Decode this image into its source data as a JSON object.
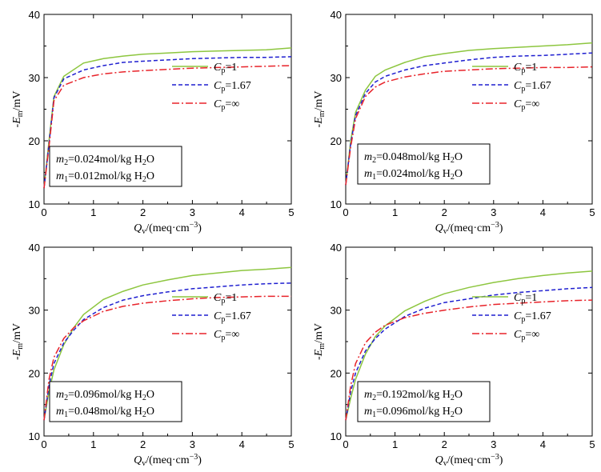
{
  "colors": {
    "cp1": "#8dc63f",
    "cp167": "#1f1fd0",
    "cpinf": "#e8232a",
    "axis": "#000000"
  },
  "chart_data": [
    {
      "type": "line",
      "xlabel": "Qv/(meq·cm−3)",
      "ylabel": "-Em/mV",
      "xlim": [
        0,
        5
      ],
      "ylim": [
        10,
        40
      ],
      "xticks": [
        "0",
        "1",
        "2",
        "3",
        "4",
        "5"
      ],
      "yticks": [
        "10",
        "20",
        "30",
        "40"
      ],
      "annotation": [
        "m2=0.024mol/kg H2O",
        "m1=0.012mol/kg H2O"
      ],
      "series": [
        {
          "name": "Cp=1",
          "x": [
            0,
            0.1,
            0.2,
            0.4,
            0.8,
            1.2,
            1.6,
            2,
            2.5,
            3,
            3.5,
            4,
            4.5,
            5
          ],
          "values": [
            12.5,
            20,
            27,
            30.2,
            32.3,
            33,
            33.4,
            33.7,
            33.9,
            34.1,
            34.2,
            34.3,
            34.4,
            34.7
          ]
        },
        {
          "name": "Cp=1.67",
          "x": [
            0,
            0.1,
            0.2,
            0.4,
            0.8,
            1.2,
            1.6,
            2,
            2.5,
            3,
            3.5,
            4,
            4.5,
            5
          ],
          "values": [
            12.5,
            19.5,
            26.8,
            29.8,
            31.2,
            31.9,
            32.4,
            32.6,
            32.8,
            33.0,
            33.1,
            33.2,
            33.2,
            33.3
          ]
        },
        {
          "name": "Cp=∞",
          "x": [
            0,
            0.1,
            0.2,
            0.4,
            0.8,
            1.2,
            1.6,
            2,
            2.5,
            3,
            3.5,
            4,
            4.5,
            5
          ],
          "values": [
            12.5,
            19,
            26.3,
            28.8,
            30.0,
            30.6,
            30.9,
            31.1,
            31.3,
            31.5,
            31.6,
            31.7,
            31.8,
            31.9
          ]
        }
      ]
    },
    {
      "type": "line",
      "xlabel": "Qv/(meq·cm−3)",
      "ylabel": "-Em/mV",
      "xlim": [
        0,
        5
      ],
      "ylim": [
        10,
        40
      ],
      "xticks": [
        "0",
        "1",
        "2",
        "3",
        "4",
        "5"
      ],
      "yticks": [
        "10",
        "20",
        "30",
        "40"
      ],
      "annotation": [
        "m2=0.048mol/kg H2O",
        "m1=0.024mol/kg H2O"
      ],
      "series": [
        {
          "name": "Cp=1",
          "x": [
            0,
            0.1,
            0.2,
            0.4,
            0.6,
            0.8,
            1.2,
            1.6,
            2,
            2.5,
            3,
            3.5,
            4,
            4.5,
            5
          ],
          "values": [
            13,
            20,
            24.5,
            28,
            30.2,
            31.2,
            32.4,
            33.3,
            33.8,
            34.3,
            34.6,
            34.8,
            35.0,
            35.2,
            35.5
          ]
        },
        {
          "name": "Cp=1.67",
          "x": [
            0,
            0.1,
            0.2,
            0.4,
            0.6,
            0.8,
            1.2,
            1.6,
            2,
            2.5,
            3,
            3.5,
            4,
            4.5,
            5
          ],
          "values": [
            13,
            19.5,
            24,
            27.5,
            29.3,
            30.2,
            31.2,
            31.9,
            32.3,
            32.8,
            33.2,
            33.4,
            33.5,
            33.7,
            33.9
          ]
        },
        {
          "name": "Cp=∞",
          "x": [
            0,
            0.1,
            0.2,
            0.4,
            0.6,
            0.8,
            1.2,
            1.6,
            2,
            2.5,
            3,
            3.5,
            4,
            4.5,
            5
          ],
          "values": [
            13,
            19,
            23.5,
            27,
            28.5,
            29.3,
            30.1,
            30.6,
            31.0,
            31.2,
            31.4,
            31.5,
            31.6,
            31.6,
            31.7
          ]
        }
      ]
    },
    {
      "type": "line",
      "xlabel": "Qv/(meq·cm−3)",
      "ylabel": "-Em/mV",
      "xlim": [
        0,
        5
      ],
      "ylim": [
        10,
        40
      ],
      "xticks": [
        "0",
        "1",
        "2",
        "3",
        "4",
        "5"
      ],
      "yticks": [
        "10",
        "20",
        "30",
        "40"
      ],
      "annotation": [
        "m2=0.096mol/kg H2O",
        "m1=0.048mol/kg H2O"
      ],
      "series": [
        {
          "name": "Cp=1",
          "x": [
            0,
            0.1,
            0.2,
            0.4,
            0.6,
            0.8,
            1.2,
            1.6,
            2,
            2.5,
            3,
            3.5,
            4,
            4.5,
            5
          ],
          "values": [
            12.5,
            17,
            20.5,
            24.5,
            27.2,
            29.3,
            31.7,
            33.0,
            34.0,
            34.8,
            35.5,
            35.9,
            36.3,
            36.5,
            36.8
          ]
        },
        {
          "name": "Cp=1.67",
          "x": [
            0,
            0.1,
            0.2,
            0.4,
            0.6,
            0.8,
            1.2,
            1.6,
            2,
            2.5,
            3,
            3.5,
            4,
            4.5,
            5
          ],
          "values": [
            12.5,
            18,
            21.5,
            24.8,
            26.8,
            28.5,
            30.4,
            31.6,
            32.3,
            32.9,
            33.4,
            33.7,
            34.0,
            34.2,
            34.3
          ]
        },
        {
          "name": "Cp=∞",
          "x": [
            0,
            0.1,
            0.2,
            0.4,
            0.6,
            0.8,
            1.2,
            1.6,
            2,
            2.5,
            3,
            3.5,
            4,
            4.5,
            5
          ],
          "values": [
            12.5,
            19,
            22.5,
            25.5,
            27.2,
            28.3,
            29.8,
            30.6,
            31.1,
            31.5,
            31.8,
            32.0,
            32.1,
            32.2,
            32.2
          ]
        }
      ]
    },
    {
      "type": "line",
      "xlabel": "Qv/(meq·cm−3)",
      "ylabel": "-Em/mV",
      "xlim": [
        0,
        5
      ],
      "ylim": [
        10,
        40
      ],
      "xticks": [
        "0",
        "1",
        "2",
        "3",
        "4",
        "5"
      ],
      "yticks": [
        "10",
        "20",
        "30",
        "40"
      ],
      "annotation": [
        "m2=0.192mol/kg H2O",
        "m1=0.096mol/kg H2O"
      ],
      "series": [
        {
          "name": "Cp=1",
          "x": [
            0,
            0.1,
            0.2,
            0.4,
            0.6,
            0.8,
            1.2,
            1.6,
            2,
            2.5,
            3,
            3.5,
            4,
            4.5,
            5
          ],
          "values": [
            12.5,
            16,
            19,
            23,
            25.8,
            27.5,
            29.9,
            31.4,
            32.6,
            33.6,
            34.4,
            35.0,
            35.5,
            35.9,
            36.2
          ]
        },
        {
          "name": "Cp=1.67",
          "x": [
            0,
            0.1,
            0.2,
            0.4,
            0.6,
            0.8,
            1.2,
            1.6,
            2,
            2.5,
            3,
            3.5,
            4,
            4.5,
            5
          ],
          "values": [
            12.5,
            17,
            20,
            23.5,
            25.5,
            27.0,
            29.0,
            30.3,
            31.2,
            31.8,
            32.4,
            32.8,
            33.1,
            33.4,
            33.6
          ]
        },
        {
          "name": "Cp=∞",
          "x": [
            0,
            0.1,
            0.2,
            0.4,
            0.6,
            0.8,
            1.2,
            1.6,
            2,
            2.5,
            3,
            3.5,
            4,
            4.5,
            5
          ],
          "values": [
            12.5,
            18,
            21.5,
            24.8,
            26.5,
            27.6,
            28.8,
            29.5,
            30.0,
            30.5,
            30.9,
            31.1,
            31.3,
            31.5,
            31.6
          ]
        }
      ]
    }
  ]
}
